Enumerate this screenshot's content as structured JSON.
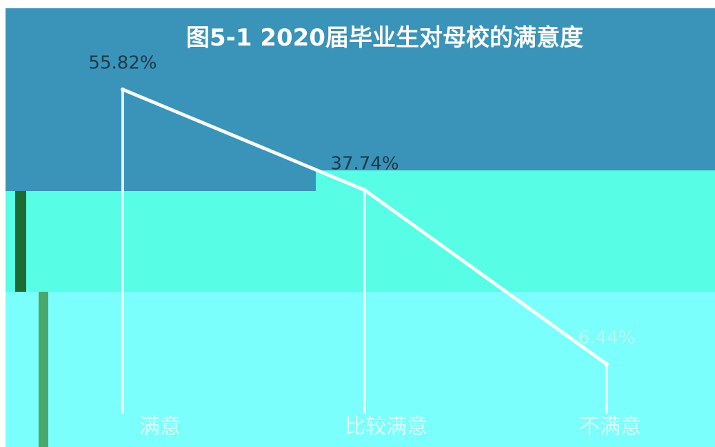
{
  "chart_data": {
    "type": "line",
    "title": "图5-1  2020届毕业生对母校的满意度",
    "categories": [
      "满意",
      "比较满意",
      "不满意"
    ],
    "values": [
      55.82,
      37.74,
      6.44
    ],
    "value_labels": [
      "55.82%",
      "37.74%",
      "6.44%"
    ],
    "ylim": [
      0,
      60
    ],
    "grid": false,
    "legend": "none",
    "colors": {
      "band_top": "#3a93b8",
      "band_middle": "#58fde6",
      "band_bottom": "#7bfffd",
      "line": "#ffffff",
      "label_top": "#1b3a4b",
      "label_bottom": "#b9f7ef",
      "tick_label": "#d9fffb",
      "stripe_dark": "#1c6b35",
      "stripe_light": "#4aa86a"
    }
  }
}
